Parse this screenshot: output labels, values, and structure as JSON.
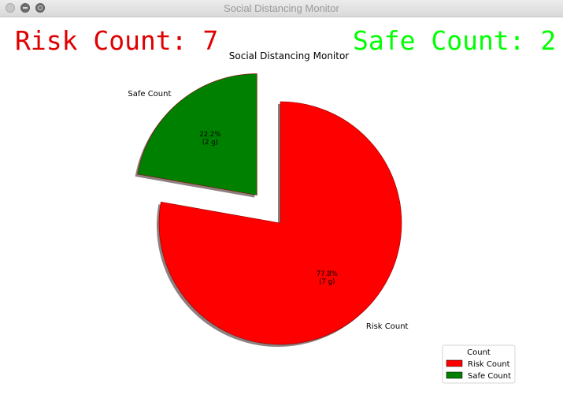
{
  "window": {
    "title": "Social Distancing Monitor"
  },
  "overlay": {
    "risk_text": "Risk Count: 7",
    "safe_text": "Safe Count: 2",
    "risk_color": "#e00000",
    "safe_color": "#00ff00"
  },
  "chart_data": {
    "type": "pie",
    "title": "Social Distancing Monitor",
    "labels": [
      "Risk Count",
      "Safe Count"
    ],
    "values": [
      7,
      2
    ],
    "percent_labels": [
      "77.8%\n(7 g)",
      "22.2%\n(2 g)"
    ],
    "colors": [
      "#ff0000",
      "#008000"
    ],
    "explode": [
      0,
      0.3
    ],
    "shadow": true,
    "legend": {
      "title": "Count",
      "placement": "lower-right"
    }
  }
}
